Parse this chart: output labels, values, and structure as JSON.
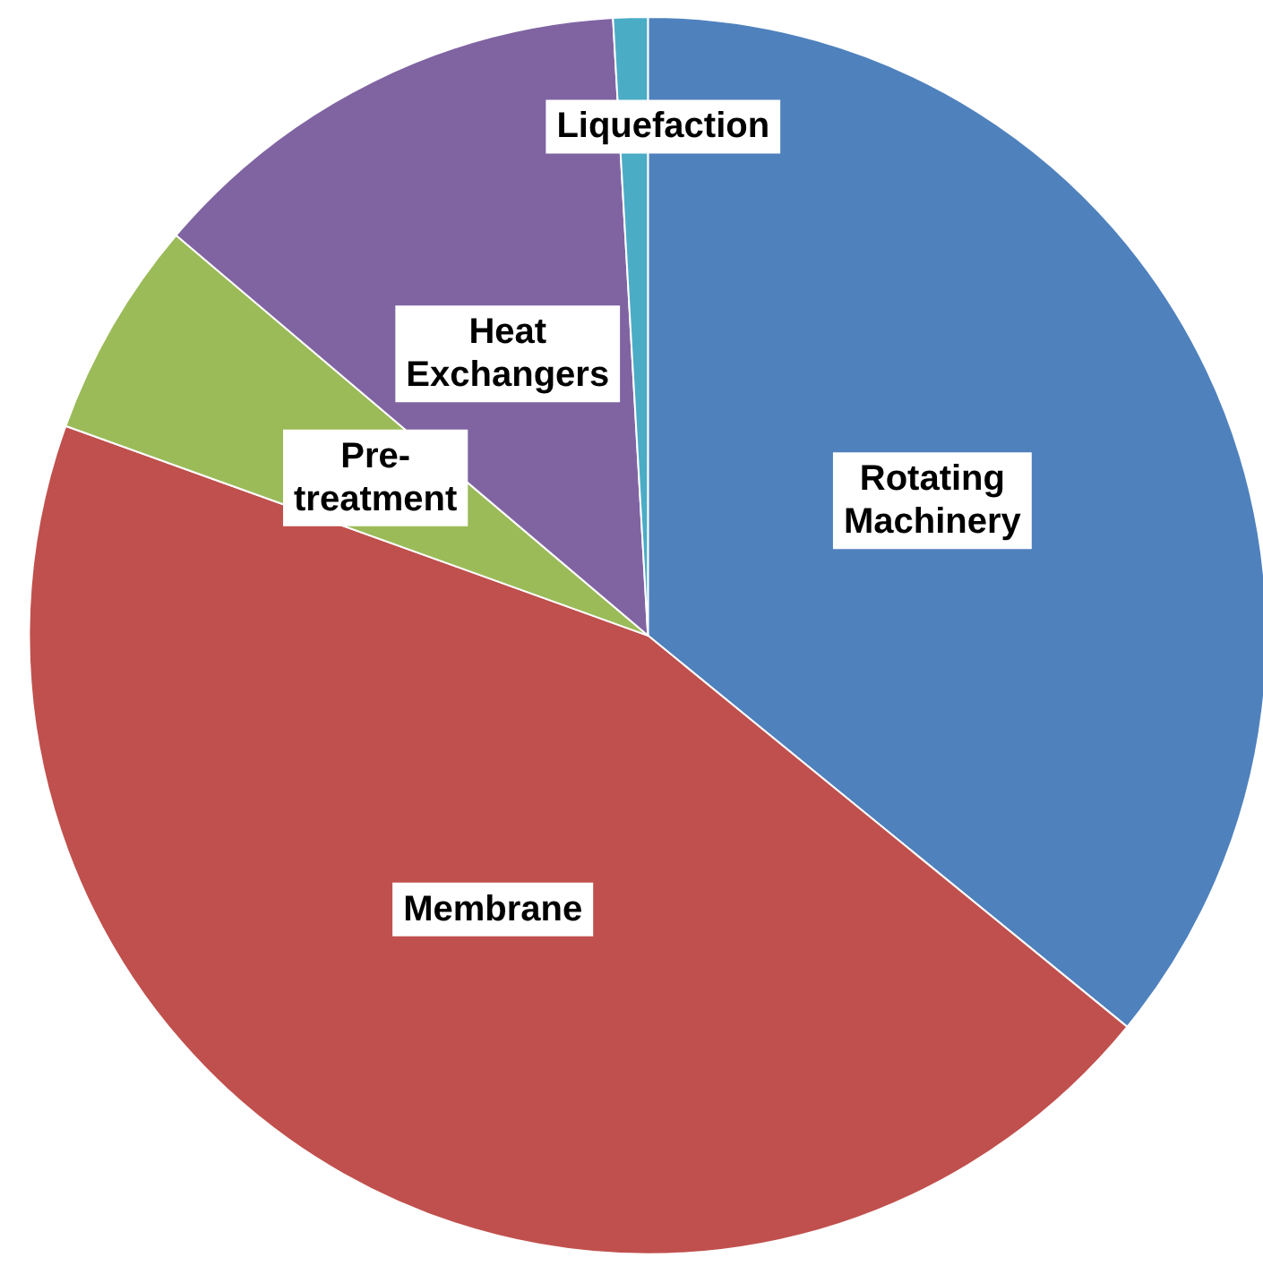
{
  "chart_data": {
    "type": "pie",
    "categories": [
      "Rotating Machinery",
      "Membrane",
      "Pre-treatment",
      "Heat Exchangers",
      "Liquefaction"
    ],
    "values": [
      35.9,
      44.6,
      5.7,
      12.9,
      0.9
    ],
    "colors": [
      "#4f81bd",
      "#c0504d",
      "#9bbb59",
      "#8064a2",
      "#4bacc6"
    ],
    "legend": false
  }
}
